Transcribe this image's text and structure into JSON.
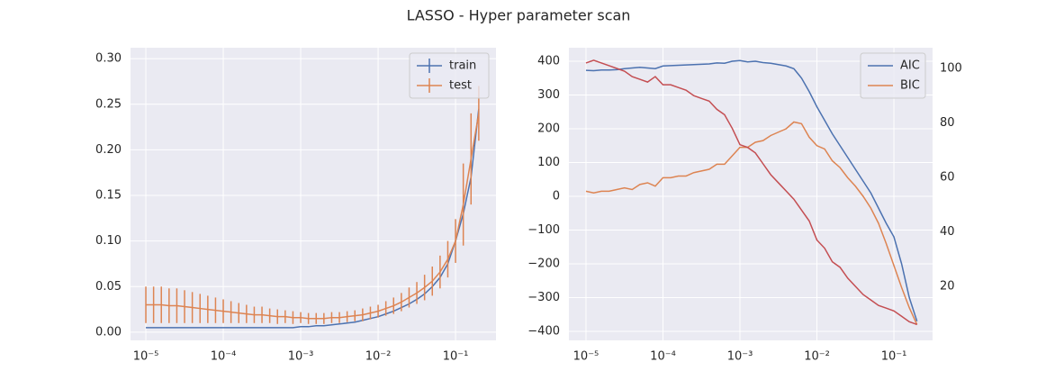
{
  "title": "LASSO - Hyper parameter scan",
  "chart_data": [
    {
      "type": "line",
      "xscale": "log",
      "grid": true,
      "legend": "upper right",
      "x": [
        1e-05,
        1.259e-05,
        1.585e-05,
        1.995e-05,
        2.512e-05,
        3.162e-05,
        3.981e-05,
        5.012e-05,
        6.31e-05,
        7.943e-05,
        0.0001,
        0.0001259,
        0.0001585,
        0.0001995,
        0.0002512,
        0.0003162,
        0.0003981,
        0.0005012,
        0.000631,
        0.0007943,
        0.001,
        0.001259,
        0.001585,
        0.001995,
        0.002512,
        0.003162,
        0.003981,
        0.005012,
        0.00631,
        0.007943,
        0.01,
        0.01259,
        0.01585,
        0.01995,
        0.02512,
        0.03162,
        0.03981,
        0.05012,
        0.0631,
        0.07943,
        0.1,
        0.1259,
        0.1585,
        0.1995
      ],
      "xlim": [
        6.34e-06,
        0.333
      ],
      "xticks": [
        {
          "value": 1e-05,
          "label": "10⁻⁵"
        },
        {
          "value": 0.0001,
          "label": "10⁻⁴"
        },
        {
          "value": 0.001,
          "label": "10⁻³"
        },
        {
          "value": 0.01,
          "label": "10⁻²"
        },
        {
          "value": 0.1,
          "label": "10⁻¹"
        }
      ],
      "ylim": [
        -0.009,
        0.312
      ],
      "yticks": [
        {
          "value": 0,
          "label": "0.00"
        },
        {
          "value": 0.05,
          "label": "0.05"
        },
        {
          "value": 0.1,
          "label": "0.10"
        },
        {
          "value": 0.15,
          "label": "0.15"
        },
        {
          "value": 0.2,
          "label": "0.20"
        },
        {
          "value": 0.25,
          "label": "0.25"
        },
        {
          "value": 0.3,
          "label": "0.30"
        }
      ],
      "series": [
        {
          "name": "train",
          "color": "#4c72b0",
          "values": [
            0.005,
            0.005,
            0.005,
            0.005,
            0.005,
            0.005,
            0.005,
            0.005,
            0.005,
            0.005,
            0.005,
            0.005,
            0.005,
            0.005,
            0.005,
            0.005,
            0.005,
            0.005,
            0.005,
            0.005,
            0.006,
            0.006,
            0.007,
            0.007,
            0.008,
            0.009,
            0.01,
            0.011,
            0.013,
            0.015,
            0.017,
            0.02,
            0.023,
            0.027,
            0.031,
            0.036,
            0.042,
            0.05,
            0.06,
            0.075,
            0.1,
            0.13,
            0.17,
            0.245
          ]
        },
        {
          "name": "test",
          "color": "#dd8452",
          "values": [
            0.03,
            0.03,
            0.03,
            0.029,
            0.029,
            0.028,
            0.027,
            0.026,
            0.025,
            0.024,
            0.023,
            0.022,
            0.021,
            0.02,
            0.019,
            0.019,
            0.018,
            0.017,
            0.017,
            0.016,
            0.016,
            0.015,
            0.015,
            0.015,
            0.016,
            0.016,
            0.017,
            0.018,
            0.019,
            0.021,
            0.023,
            0.026,
            0.029,
            0.033,
            0.038,
            0.043,
            0.049,
            0.056,
            0.066,
            0.08,
            0.1,
            0.14,
            0.19,
            0.24
          ],
          "errors": [
            0.02,
            0.02,
            0.02,
            0.019,
            0.019,
            0.018,
            0.017,
            0.016,
            0.015,
            0.014,
            0.013,
            0.012,
            0.011,
            0.01,
            0.009,
            0.009,
            0.008,
            0.008,
            0.007,
            0.007,
            0.006,
            0.006,
            0.006,
            0.006,
            0.006,
            0.006,
            0.006,
            0.006,
            0.007,
            0.007,
            0.007,
            0.008,
            0.009,
            0.01,
            0.011,
            0.012,
            0.014,
            0.016,
            0.018,
            0.02,
            0.024,
            0.045,
            0.05,
            0.03
          ]
        }
      ]
    },
    {
      "type": "line",
      "xscale": "log",
      "grid": true,
      "legend": "upper right",
      "x": [
        1e-05,
        1.259e-05,
        1.585e-05,
        1.995e-05,
        2.512e-05,
        3.162e-05,
        3.981e-05,
        5.012e-05,
        6.31e-05,
        7.943e-05,
        0.0001,
        0.0001259,
        0.0001585,
        0.0001995,
        0.0002512,
        0.0003162,
        0.0003981,
        0.0005012,
        0.000631,
        0.0007943,
        0.001,
        0.001259,
        0.001585,
        0.001995,
        0.002512,
        0.003162,
        0.003981,
        0.005012,
        0.00631,
        0.007943,
        0.01,
        0.01259,
        0.01585,
        0.01995,
        0.02512,
        0.03162,
        0.03981,
        0.05012,
        0.0631,
        0.07943,
        0.1,
        0.1259,
        0.1585,
        0.1995
      ],
      "xlim": [
        6e-06,
        0.318
      ],
      "xticks": [
        {
          "value": 1e-05,
          "label": "10⁻⁵"
        },
        {
          "value": 0.0001,
          "label": "10⁻⁴"
        },
        {
          "value": 0.001,
          "label": "10⁻³"
        },
        {
          "value": 0.01,
          "label": "10⁻²"
        },
        {
          "value": 0.1,
          "label": "10⁻¹"
        }
      ],
      "ylim": [
        -426.7,
        440
      ],
      "yticks": [
        {
          "value": -400,
          "label": "−400"
        },
        {
          "value": -300,
          "label": "−300"
        },
        {
          "value": -200,
          "label": "−200"
        },
        {
          "value": -100,
          "label": "−100"
        },
        0,
        100,
        200,
        300,
        400
      ],
      "y2lim": [
        0.17,
        107.6
      ],
      "y2ticks": [
        20,
        40,
        60,
        80,
        100
      ],
      "series": [
        {
          "name": "AIC",
          "color": "#4c72b0",
          "values": [
            373,
            372,
            374,
            374,
            375,
            378,
            380,
            382,
            380,
            378,
            386,
            387,
            388,
            389,
            390,
            391,
            392,
            395,
            394,
            400,
            402,
            398,
            400,
            396,
            394,
            390,
            386,
            378,
            350,
            310,
            265,
            225,
            185,
            150,
            115,
            80,
            45,
            10,
            -35,
            -80,
            -120,
            -200,
            -300,
            -370
          ]
        },
        {
          "name": "BIC",
          "color": "#dd8452",
          "values": [
            15,
            10,
            15,
            15,
            20,
            25,
            20,
            35,
            40,
            30,
            55,
            55,
            60,
            60,
            70,
            75,
            80,
            95,
            95,
            120,
            145,
            145,
            160,
            165,
            180,
            190,
            200,
            220,
            215,
            175,
            150,
            140,
            105,
            85,
            55,
            30,
            0,
            -35,
            -80,
            -140,
            -205,
            -270,
            -330,
            -380
          ]
        },
        {
          "color": "#c44e52",
          "axis": "y2",
          "values": [
            102,
            103,
            102,
            101,
            100,
            99,
            97,
            96,
            95,
            97,
            94,
            94,
            93,
            92,
            90,
            89,
            88,
            85,
            83,
            78,
            72,
            71,
            69,
            65,
            61,
            58,
            55,
            52,
            48,
            44,
            37,
            34,
            29,
            27,
            23,
            20,
            17,
            15,
            13,
            12,
            11,
            9,
            7,
            6
          ]
        }
      ]
    }
  ]
}
